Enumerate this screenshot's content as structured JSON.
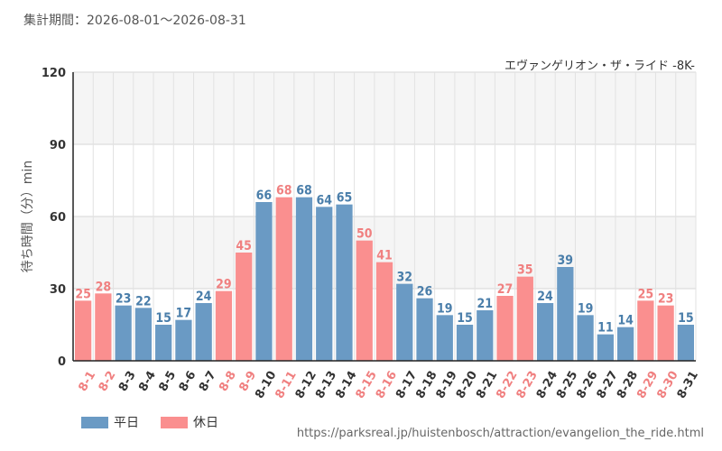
{
  "header": {
    "period_label": "集計期間：2026-08-01～2026-08-31",
    "attraction": "エヴァンゲリオン・ザ・ライド -8K-"
  },
  "footer": {
    "source_url": "https://parksreal.jp/huistenbosch/attraction/evangelion_the_ride.html"
  },
  "colors": {
    "weekday": "#6a9ac4",
    "holiday": "#fa8f8f",
    "band": "#f5f5f5",
    "grid": "#e2e2e2",
    "axis": "#222222"
  },
  "chart_data": {
    "type": "bar",
    "ylabel": "待ち時間（分）min",
    "ylim": [
      0,
      120
    ],
    "yticks": [
      0,
      30,
      60,
      90,
      120
    ],
    "grid": true,
    "legend_position": "bottom-left",
    "categories": [
      "8-1",
      "8-2",
      "8-3",
      "8-4",
      "8-5",
      "8-6",
      "8-7",
      "8-8",
      "8-9",
      "8-10",
      "8-11",
      "8-12",
      "8-13",
      "8-14",
      "8-15",
      "8-16",
      "8-17",
      "8-18",
      "8-19",
      "8-20",
      "8-21",
      "8-22",
      "8-23",
      "8-24",
      "8-25",
      "8-26",
      "8-27",
      "8-28",
      "8-29",
      "8-30",
      "8-31"
    ],
    "values": [
      25,
      28,
      23,
      22,
      15,
      17,
      24,
      29,
      45,
      66,
      68,
      68,
      64,
      65,
      50,
      41,
      32,
      26,
      19,
      15,
      21,
      27,
      35,
      24,
      39,
      19,
      11,
      14,
      25,
      23,
      15
    ],
    "day_type": [
      "休日",
      "休日",
      "平日",
      "平日",
      "平日",
      "平日",
      "平日",
      "休日",
      "休日",
      "平日",
      "休日",
      "平日",
      "平日",
      "平日",
      "休日",
      "休日",
      "平日",
      "平日",
      "平日",
      "平日",
      "平日",
      "休日",
      "休日",
      "平日",
      "平日",
      "平日",
      "平日",
      "平日",
      "休日",
      "休日",
      "平日"
    ],
    "legend": [
      {
        "key": "平日",
        "label": "平日"
      },
      {
        "key": "休日",
        "label": "休日"
      }
    ]
  }
}
